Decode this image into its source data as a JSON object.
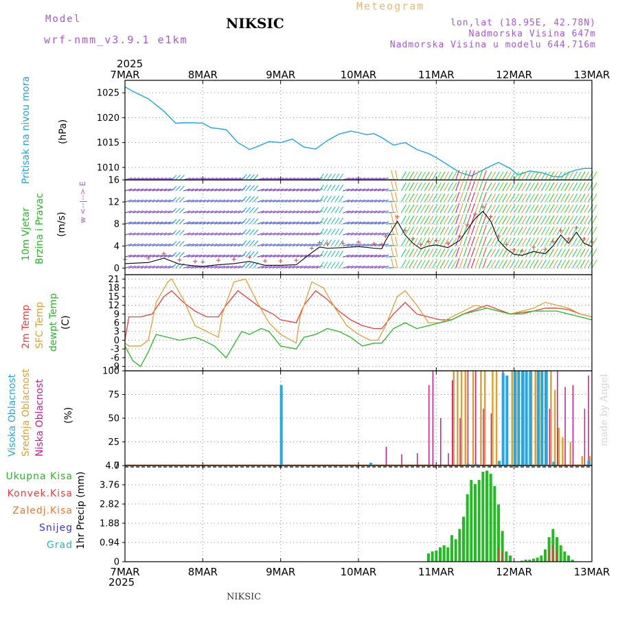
{
  "header": {
    "model_label": "Model",
    "model_name": "wrf-nmm_v3.9.1 e1km",
    "station": "NIKSIC",
    "title": "Meteogram",
    "lonlat": "lon,lat (18.95E, 42.78N)",
    "elevation": "Nadmorska Visina 647m",
    "model_elevation": "Nadmorska Visina u modelu 644.716m",
    "footer_station": "NIKSIC",
    "credit": "made by Angel",
    "year": "2025"
  },
  "colors": {
    "pressure": "#1aa6e6",
    "temp2m": "#ee3b3b",
    "sfc": "#e0a030",
    "dewpt": "#22bb22",
    "model": "#a855d8",
    "title_orange": "#e8b870",
    "wind_label": "#22bb22",
    "high_cloud": "#22a8e8",
    "mid_cloud": "#e0a030",
    "low_cloud": "#cc1a8c",
    "total_precip": "#22bb22",
    "conv_precip": "#ee3b3b",
    "frozen_precip": "#f07828",
    "snow": "#3333dd",
    "grad": "#22bbbb"
  },
  "x_axis": {
    "ticks": [
      "7MAR",
      "8MAR",
      "9MAR",
      "10MAR",
      "11MAR",
      "12MAR",
      "13MAR"
    ],
    "range_days": [
      0,
      6
    ]
  },
  "panels": {
    "pressure": {
      "label": "Pritisak na nivou mora",
      "unit": "(hPa)"
    },
    "wind": {
      "label1": "10m Vjetar",
      "label2": "Brzina i Pravac",
      "unit": "(m/s)",
      "compass": "w <--|--> E"
    },
    "temp": {
      "label1": "2m Temp",
      "label2": "SFC Temp",
      "label3": "dewpt Temp",
      "unit": "(C)"
    },
    "cloud": {
      "label1": "Visoka Oblacnost",
      "label2": "Srednja Oblacnost",
      "label3": "Niska Oblacnost",
      "unit": "(%)"
    },
    "precip": {
      "unit_label": "1hr Precip (mm)",
      "legend": [
        "Ukupna Kisa",
        "Konvek.Kisa",
        "Zaledj.Kisa",
        "Snijeg",
        "Grad"
      ]
    }
  },
  "chart_data": [
    {
      "type": "line",
      "name": "pressure",
      "yticks": [
        1010,
        1015,
        1020,
        1025
      ],
      "ylim": [
        1007.5,
        1027.5
      ],
      "x": [
        0,
        0.1,
        0.3,
        0.5,
        0.65,
        0.8,
        1.0,
        1.1,
        1.3,
        1.45,
        1.6,
        1.7,
        1.85,
        2.0,
        2.15,
        2.3,
        2.45,
        2.6,
        2.75,
        2.9,
        3.0,
        3.1,
        3.2,
        3.3,
        3.45,
        3.6,
        3.75,
        3.9,
        4.0,
        4.15,
        4.3,
        4.45,
        4.6,
        4.7,
        4.8,
        4.95,
        5.05,
        5.2,
        5.35,
        5.5,
        5.6,
        5.7,
        5.8,
        5.9,
        6.0
      ],
      "y": [
        1026.2,
        1025.3,
        1023.8,
        1021.3,
        1018.9,
        1019.0,
        1018.9,
        1018.0,
        1017.6,
        1015.0,
        1013.6,
        1014.2,
        1015.2,
        1015.0,
        1015.7,
        1014.1,
        1013.7,
        1015.4,
        1016.7,
        1017.3,
        1017.0,
        1016.6,
        1016.8,
        1016.0,
        1014.5,
        1015.0,
        1013.6,
        1012.8,
        1012.0,
        1010.5,
        1009.0,
        1008.3,
        1009.5,
        1010.3,
        1011.0,
        1009.8,
        1008.5,
        1009.3,
        1009.0,
        1008.2,
        1008.1,
        1009.0,
        1009.5,
        1009.8,
        1009.8
      ]
    },
    {
      "type": "line",
      "name": "wind",
      "yticks": [
        0,
        4,
        8,
        12,
        16
      ],
      "ylim": [
        -1.2,
        16
      ],
      "x": [
        0,
        0.3,
        0.5,
        0.7,
        0.9,
        1.0,
        1.2,
        1.4,
        1.6,
        1.8,
        2.0,
        2.2,
        2.4,
        2.5,
        2.6,
        2.8,
        3.0,
        3.2,
        3.3,
        3.35,
        3.5,
        3.6,
        3.7,
        3.8,
        3.9,
        4.0,
        4.15,
        4.3,
        4.4,
        4.5,
        4.6,
        4.7,
        4.8,
        4.9,
        5.0,
        5.1,
        5.25,
        5.4,
        5.5,
        5.6,
        5.7,
        5.8,
        5.9,
        6.0
      ],
      "y": [
        0.8,
        1.0,
        1.8,
        0.7,
        0.4,
        0.3,
        0.6,
        0.8,
        1.2,
        0.5,
        0.5,
        0.6,
        2.8,
        3.8,
        3.6,
        3.7,
        3.9,
        3.6,
        3.5,
        5.0,
        8.5,
        6.0,
        4.5,
        3.5,
        4.0,
        4.2,
        3.7,
        5.0,
        7.0,
        9.0,
        10.3,
        8.5,
        5.0,
        3.5,
        2.5,
        2.3,
        3.0,
        2.6,
        4.0,
        6.0,
        4.5,
        6.5,
        4.5,
        3.9
      ]
    },
    {
      "type": "line",
      "name": "temperature",
      "yticks": [
        -9,
        -6,
        -3,
        0,
        3,
        6,
        9,
        12,
        15,
        18,
        21
      ],
      "ylim": [
        -10.5,
        22.5
      ],
      "series": [
        {
          "x": [
            0,
            0.05,
            0.2,
            0.35,
            0.5,
            0.6,
            0.75,
            0.9,
            1.05,
            1.2,
            1.3,
            1.45,
            1.6,
            1.75,
            1.9,
            2.0,
            2.2,
            2.3,
            2.45,
            2.6,
            2.75,
            2.9,
            3.05,
            3.2,
            3.3,
            3.45,
            3.6,
            3.75,
            3.9,
            4.05,
            4.2,
            4.35,
            4.5,
            4.65,
            4.8,
            4.95,
            5.1,
            5.25,
            5.4,
            5.55,
            5.7,
            5.85,
            6.0
          ],
          "y": [
            0,
            8,
            8,
            9,
            15,
            17,
            13,
            10,
            8,
            8,
            12,
            17,
            14,
            11,
            9,
            7,
            6,
            12,
            17,
            14,
            10,
            7,
            5,
            4,
            4,
            9,
            13,
            9,
            8,
            7,
            7,
            9,
            10.5,
            12,
            10.5,
            9,
            9.5,
            10,
            11,
            11,
            10.5,
            9,
            8
          ]
        },
        {
          "x": [
            0,
            0.05,
            0.2,
            0.3,
            0.4,
            0.55,
            0.6,
            0.75,
            0.9,
            1.05,
            1.2,
            1.25,
            1.4,
            1.55,
            1.7,
            1.85,
            2.0,
            2.2,
            2.25,
            2.4,
            2.55,
            2.7,
            2.85,
            3.0,
            3.15,
            3.25,
            3.35,
            3.5,
            3.6,
            3.75,
            3.9,
            4.05,
            4.2,
            4.35,
            4.5,
            4.65,
            4.8,
            4.95,
            5.1,
            5.25,
            5.4,
            5.55,
            5.7,
            5.85,
            6.0
          ],
          "y": [
            -1,
            -2,
            -2,
            0,
            13,
            20,
            21,
            14,
            5,
            3,
            1,
            9,
            20,
            21,
            13,
            6,
            2,
            -1,
            8,
            20,
            18,
            11,
            5,
            2,
            0,
            0,
            5,
            15,
            17,
            12,
            6,
            6,
            8,
            10,
            12,
            11,
            10,
            9,
            10,
            11,
            13,
            12,
            11,
            9,
            8
          ]
        },
        {
          "x": [
            0,
            0.1,
            0.2,
            0.3,
            0.4,
            0.55,
            0.7,
            0.9,
            1.0,
            1.15,
            1.3,
            1.5,
            1.6,
            1.75,
            1.85,
            2.0,
            2.2,
            2.3,
            2.45,
            2.6,
            2.75,
            2.9,
            3.05,
            3.2,
            3.3,
            3.45,
            3.6,
            3.75,
            3.9,
            4.05,
            4.2,
            4.35,
            4.5,
            4.65,
            4.8,
            4.95,
            5.1,
            5.25,
            5.4,
            5.55,
            5.7,
            5.85,
            6.0
          ],
          "y": [
            -2,
            -7,
            -9,
            -4,
            2,
            1,
            0,
            1,
            0,
            -2,
            -6,
            3,
            2,
            4,
            3,
            -2,
            -3,
            1,
            2,
            4,
            3,
            1,
            -2,
            -1,
            -1,
            4,
            6,
            4,
            5,
            6,
            7,
            9,
            10,
            11,
            10,
            9,
            9,
            10,
            10,
            10,
            9,
            8,
            7
          ]
        }
      ]
    },
    {
      "type": "bar",
      "name": "cloud",
      "yticks": [
        0,
        25,
        50,
        75,
        100
      ],
      "ylim": [
        0,
        100
      ],
      "high": [
        [
          2.0,
          85
        ],
        [
          3.15,
          3
        ],
        [
          4.4,
          2
        ],
        [
          4.5,
          2
        ],
        [
          4.8,
          5
        ],
        [
          4.85,
          98
        ],
        [
          4.9,
          95
        ],
        [
          5.0,
          100
        ],
        [
          5.05,
          100
        ],
        [
          5.1,
          100
        ],
        [
          5.15,
          100
        ],
        [
          5.2,
          100
        ],
        [
          5.3,
          100
        ],
        [
          5.35,
          100
        ],
        [
          5.4,
          100
        ],
        [
          5.5,
          4
        ],
        [
          5.95,
          5
        ]
      ],
      "mid": [
        [
          4.2,
          100
        ],
        [
          4.25,
          100
        ],
        [
          4.3,
          100
        ],
        [
          4.35,
          100
        ],
        [
          4.45,
          100
        ],
        [
          4.55,
          100
        ],
        [
          4.6,
          100
        ],
        [
          4.7,
          100
        ],
        [
          4.75,
          100
        ],
        [
          4.95,
          100
        ],
        [
          5.0,
          100
        ],
        [
          5.1,
          100
        ],
        [
          5.2,
          100
        ],
        [
          5.25,
          100
        ],
        [
          5.3,
          100
        ],
        [
          5.4,
          100
        ],
        [
          5.45,
          100
        ],
        [
          5.5,
          80
        ],
        [
          5.55,
          40
        ],
        [
          5.6,
          30
        ],
        [
          5.7,
          25
        ],
        [
          5.85,
          10
        ],
        [
          5.95,
          10
        ]
      ],
      "low": [
        [
          3.35,
          20
        ],
        [
          3.55,
          12
        ],
        [
          3.75,
          13
        ],
        [
          3.9,
          85
        ],
        [
          3.95,
          100
        ],
        [
          4.05,
          50
        ],
        [
          4.15,
          13
        ],
        [
          4.2,
          90
        ],
        [
          4.3,
          50
        ],
        [
          4.4,
          100
        ],
        [
          4.5,
          100
        ],
        [
          4.6,
          60
        ],
        [
          4.7,
          55
        ],
        [
          4.85,
          100
        ],
        [
          5.0,
          100
        ],
        [
          5.2,
          100
        ],
        [
          5.35,
          100
        ],
        [
          5.45,
          60
        ],
        [
          5.55,
          100
        ],
        [
          5.65,
          83
        ],
        [
          5.75,
          85
        ],
        [
          5.9,
          60
        ],
        [
          5.95,
          95
        ]
      ]
    },
    {
      "type": "bar",
      "name": "precip",
      "yticks": [
        0,
        0.94,
        1.88,
        2.82,
        3.76,
        4.7
      ],
      "ylim": [
        0,
        4.7
      ],
      "total": [
        [
          3.9,
          0.4
        ],
        [
          3.95,
          0.5
        ],
        [
          4.0,
          0.55
        ],
        [
          4.05,
          0.7
        ],
        [
          4.1,
          0.8
        ],
        [
          4.15,
          0.7
        ],
        [
          4.2,
          1.3
        ],
        [
          4.25,
          1.1
        ],
        [
          4.3,
          1.6
        ],
        [
          4.35,
          2.2
        ],
        [
          4.4,
          3.3
        ],
        [
          4.45,
          4.0
        ],
        [
          4.5,
          3.8
        ],
        [
          4.55,
          4.0
        ],
        [
          4.6,
          4.4
        ],
        [
          4.65,
          4.45
        ],
        [
          4.7,
          4.3
        ],
        [
          4.75,
          3.7
        ],
        [
          4.8,
          2.8
        ],
        [
          4.85,
          1.5
        ],
        [
          4.9,
          0.5
        ],
        [
          4.95,
          0.3
        ],
        [
          5.1,
          0.05
        ],
        [
          5.15,
          0.1
        ],
        [
          5.2,
          0.1
        ],
        [
          5.25,
          0.15
        ],
        [
          5.3,
          0.2
        ],
        [
          5.35,
          0.3
        ],
        [
          5.4,
          0.6
        ],
        [
          5.45,
          1.2
        ],
        [
          5.5,
          1.6
        ],
        [
          5.55,
          1.2
        ],
        [
          5.6,
          0.8
        ],
        [
          5.65,
          0.5
        ],
        [
          5.7,
          0.3
        ],
        [
          5.75,
          0.1
        ]
      ],
      "conv": [
        [
          4.8,
          0.7
        ],
        [
          4.85,
          0.5
        ],
        [
          5.45,
          0.6
        ],
        [
          5.5,
          0.8
        ],
        [
          5.55,
          0.5
        ]
      ]
    }
  ]
}
